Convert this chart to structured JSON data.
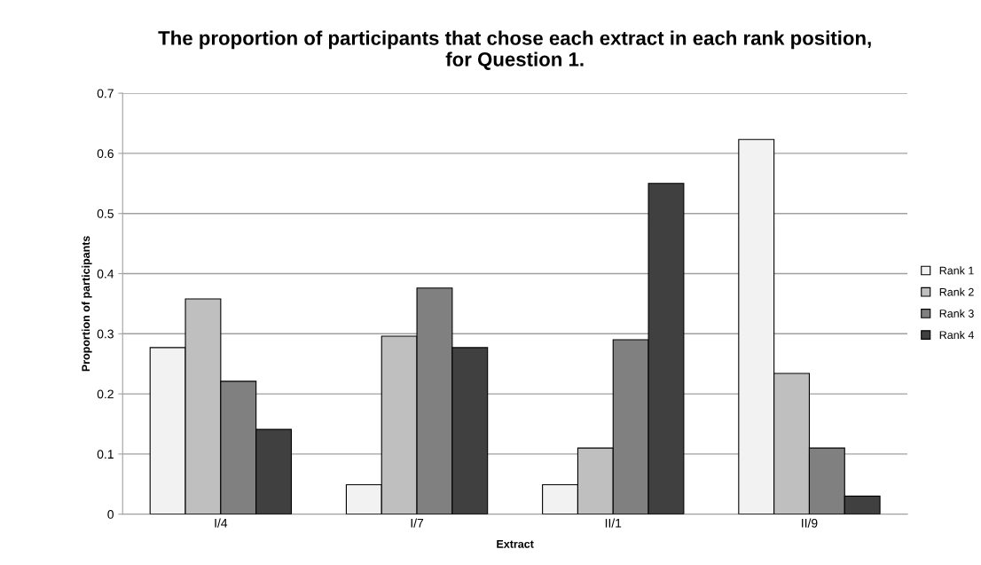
{
  "chart_data": {
    "type": "bar",
    "title": "The proportion of participants that chose each extract in each rank position,\nfor Question 1.",
    "xlabel": "Extract",
    "ylabel": "Proportion of participants",
    "categories": [
      "I/4",
      "I/7",
      "II/1",
      "II/9"
    ],
    "series": [
      {
        "name": "Rank 1",
        "color": "#f2f2f2",
        "values": [
          0.277,
          0.049,
          0.049,
          0.623
        ]
      },
      {
        "name": "Rank 2",
        "color": "#bfbfbf",
        "values": [
          0.358,
          0.296,
          0.11,
          0.234
        ]
      },
      {
        "name": "Rank 3",
        "color": "#808080",
        "values": [
          0.221,
          0.376,
          0.29,
          0.11
        ]
      },
      {
        "name": "Rank 4",
        "color": "#404040",
        "values": [
          0.141,
          0.277,
          0.55,
          0.03
        ]
      }
    ],
    "ylim": [
      0,
      0.7
    ],
    "yticks": [
      0,
      0.1,
      0.2,
      0.3,
      0.4,
      0.5,
      0.6,
      0.7
    ],
    "grid": "y",
    "legend": "right"
  }
}
